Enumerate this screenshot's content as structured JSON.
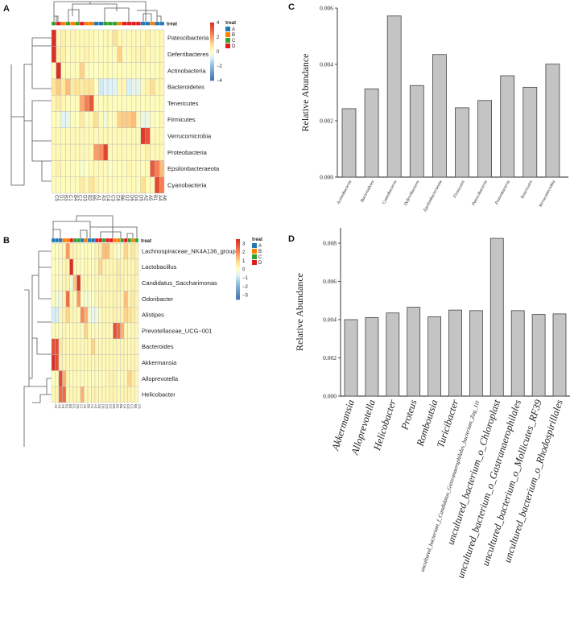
{
  "panels": {
    "a": "A",
    "b": "B",
    "c": "C",
    "d": "D"
  },
  "colors": {
    "treat": {
      "A": "#1F78B4",
      "B": "#FF7F00",
      "C": "#33A02C",
      "D": "#E31A1C"
    },
    "heat_low": "#4575B4",
    "heat_mid": "#FFFFBF",
    "heat_high": "#D73027",
    "bar_fill": "#C4C4C4",
    "bar_stroke": "#444444"
  },
  "chart_data": [
    {
      "type": "heatmap",
      "panel": "A",
      "treat_title": "treat",
      "legend_title": "treat",
      "legend_levels": [
        "A",
        "B",
        "C",
        "D"
      ],
      "scale_ticks": [
        "4",
        "2",
        "0",
        "−2",
        "−4"
      ],
      "scale_range": [
        -4,
        4
      ],
      "columns": [
        "C5",
        "D1",
        "B3",
        "C1",
        "B4",
        "C2",
        "D3",
        "B2",
        "B5",
        "A1",
        "A3",
        "C4",
        "C3",
        "C6",
        "B6",
        "D2",
        "D6",
        "D4",
        "D5",
        "A2",
        "A5",
        "B1",
        "A4",
        "A6"
      ],
      "column_treat": [
        "C",
        "D",
        "B",
        "C",
        "B",
        "C",
        "D",
        "B",
        "B",
        "A",
        "A",
        "C",
        "C",
        "C",
        "B",
        "D",
        "D",
        "D",
        "D",
        "A",
        "A",
        "B",
        "A",
        "A"
      ],
      "rows": [
        "Patescibacteria",
        "Deferribacteres",
        "Actinobacteria",
        "Bacteroidetes",
        "Tenericutes",
        "Firmicutes",
        "Verrucomicrobia",
        "Proteobacteria",
        "Epsilonbacteraeota",
        "Cyanobacteria"
      ],
      "values": [
        [
          4,
          0.2,
          0.5,
          0.2,
          0.3,
          0.2,
          0.2,
          0.3,
          0.2,
          0.1,
          0.1,
          0.2,
          0.2,
          0.9,
          0.2,
          0.2,
          0.2,
          0.2,
          0.2,
          0.2,
          0.5,
          0.2,
          0.1,
          0.3
        ],
        [
          4,
          0.5,
          0.5,
          0.1,
          0.2,
          0.1,
          0.2,
          0.4,
          0.2,
          0.1,
          0.1,
          0.1,
          0.1,
          0.1,
          1.2,
          0.1,
          0.1,
          0.3,
          0.3,
          0.5,
          0.1,
          0.2,
          0.1,
          0.3
        ],
        [
          0.1,
          4,
          0.1,
          0.1,
          0.1,
          0.1,
          1.2,
          0.1,
          0,
          0,
          0.1,
          0.1,
          0.1,
          0.1,
          0.1,
          0.1,
          0.1,
          0.1,
          0.1,
          0.1,
          0.1,
          0.1,
          0.1,
          0.3
        ],
        [
          0.8,
          1.3,
          0.6,
          1.5,
          0.7,
          0.8,
          0.6,
          0.8,
          0.8,
          0,
          -1,
          -0.8,
          -0.8,
          -0.8,
          0.3,
          0.3,
          -0.9,
          -0.6,
          -0.6,
          0.2,
          0.4,
          1.0,
          0.2,
          0.3
        ],
        [
          0.3,
          0.6,
          0.3,
          0.1,
          0.1,
          0.1,
          1.8,
          2.5,
          3.2,
          0.1,
          0.1,
          0.2,
          0.1,
          0.1,
          0.1,
          0.1,
          0.1,
          0.1,
          0.1,
          0.1,
          0.1,
          0.1,
          0.1,
          0.1
        ],
        [
          0,
          0.1,
          -0.8,
          -0.6,
          0.1,
          0,
          0.6,
          0.1,
          0.2,
          1.0,
          0.1,
          -0.3,
          0.1,
          0.1,
          1.2,
          1.3,
          1.3,
          1.5,
          0.2,
          -0.5,
          -0.5,
          0.1,
          0,
          0.3
        ],
        [
          0.2,
          0.2,
          0.2,
          0.2,
          0.2,
          0.2,
          0.2,
          0.2,
          0.2,
          0.2,
          0.2,
          0.2,
          0.2,
          0.2,
          0.2,
          0.2,
          0.2,
          0.2,
          0.2,
          3.8,
          3.3,
          0.2,
          0.2,
          0.2
        ],
        [
          0.2,
          0.2,
          0.2,
          0.2,
          0.2,
          0.2,
          0.2,
          0.2,
          0.2,
          2.0,
          2.2,
          3.6,
          0.2,
          0.2,
          0.2,
          0.2,
          0.2,
          0.2,
          0.2,
          0.2,
          0.5,
          0.2,
          0.2,
          0.2
        ],
        [
          0.1,
          0.4,
          0.1,
          0.1,
          0.1,
          0,
          -0.2,
          0,
          0.1,
          0.2,
          0.2,
          0.1,
          -0.1,
          0.1,
          0.1,
          0.1,
          0.3,
          0.1,
          0.1,
          0.1,
          0.1,
          3.2,
          2.5,
          1.5
        ],
        [
          0.1,
          0.1,
          0.1,
          0.1,
          0.1,
          0.1,
          0.6,
          0.3,
          0.8,
          0.4,
          0.1,
          0.1,
          0.1,
          0.1,
          0.1,
          0.1,
          0.1,
          0.1,
          0.1,
          1.0,
          0.1,
          0.2,
          3.5,
          2.5
        ]
      ]
    },
    {
      "type": "heatmap",
      "panel": "B",
      "treat_title": "treat",
      "legend_title": "treat",
      "legend_levels": [
        "A",
        "B",
        "C",
        "D"
      ],
      "scale_ticks": [
        "3",
        "2",
        "1",
        "0",
        "−1",
        "−2",
        "−3"
      ],
      "scale_range": [
        -3.5,
        3.5
      ],
      "columns": [
        "A2",
        "A5",
        "A4",
        "B1",
        "B3",
        "D1",
        "C5",
        "C1",
        "A6",
        "B5",
        "A1",
        "A3",
        "D4",
        "D6",
        "C3",
        "D2",
        "D5",
        "B2",
        "B6",
        "C4",
        "D3",
        "C2",
        "B4",
        "C6"
      ],
      "column_treat": [
        "A",
        "A",
        "A",
        "B",
        "B",
        "D",
        "C",
        "C",
        "A",
        "B",
        "A",
        "A",
        "D",
        "D",
        "C",
        "D",
        "D",
        "B",
        "B",
        "C",
        "D",
        "C",
        "B",
        "C"
      ],
      "rows": [
        "Lachnospiraceae_NK4A136_group",
        "Lactobacillus",
        "Candidatus_Saccharimonas",
        "Odoribacter",
        "Alistipes",
        "Prevotellaceae_UCG−001",
        "Bacteroides",
        "Akkermansia",
        "Alloprevotella",
        "Helicobacter"
      ],
      "values": [
        [
          0,
          0,
          0.1,
          0.2,
          1.8,
          0.3,
          0.2,
          0.1,
          0,
          0.1,
          0,
          0,
          0.3,
          0.5,
          1.3,
          1.3,
          0.3,
          0.1,
          -0.2,
          0.1,
          1.0,
          0.3,
          0.6,
          0.3
        ],
        [
          0,
          0,
          0.1,
          0.2,
          0.3,
          3.5,
          0.2,
          0.1,
          0,
          0.2,
          0.1,
          0.1,
          0.2,
          1.0,
          0.3,
          0.2,
          0.2,
          0.2,
          0.6,
          0.2,
          0.3,
          0.2,
          0.2,
          0.5
        ],
        [
          0.1,
          0.1,
          0.1,
          0.2,
          0.3,
          -0.3,
          1.2,
          3.4,
          0.2,
          0.2,
          0.1,
          0.1,
          0.2,
          0.2,
          0.2,
          0.3,
          0.2,
          0.2,
          0.5,
          0.3,
          0.2,
          0.2,
          0.3,
          0.3
        ],
        [
          0.1,
          -0.3,
          -0.3,
          0.3,
          2.5,
          0.2,
          0.1,
          1.8,
          0,
          -0.2,
          -0.2,
          0,
          0.2,
          0.3,
          0.2,
          0.2,
          0.2,
          0.3,
          0.3,
          0.2,
          1.3,
          0.3,
          0.5,
          0.3
        ],
        [
          -0.8,
          -0.8,
          0.2,
          0.3,
          1.0,
          0.2,
          0.2,
          0.1,
          2.0,
          1.5,
          -0.3,
          -0.5,
          -0.3,
          0.1,
          0.2,
          0.2,
          0.2,
          0.3,
          0.3,
          0.3,
          1.0,
          0.8,
          0.5,
          0.3
        ],
        [
          0.1,
          0.1,
          0.1,
          0.2,
          0.1,
          0.1,
          0.2,
          0.1,
          0.1,
          1.0,
          0.1,
          0.1,
          0.1,
          0.1,
          0.2,
          0.1,
          0.1,
          3.0,
          2.5,
          1.5,
          0.2,
          0.1,
          0.2,
          0.2
        ],
        [
          3.0,
          3.0,
          0.6,
          0.2,
          0.2,
          0.2,
          0.2,
          0.2,
          0.2,
          0.2,
          0.2,
          1.0,
          0.2,
          0.2,
          0.2,
          0.2,
          0.2,
          0.2,
          0.2,
          0.2,
          0.2,
          0.2,
          0.2,
          0.2
        ],
        [
          3.5,
          3.0,
          0.3,
          0.2,
          0.2,
          0.2,
          0.2,
          0.2,
          0.2,
          0.2,
          0.2,
          0.2,
          0.2,
          0.2,
          0.2,
          0.2,
          0.2,
          0.2,
          0.2,
          0.2,
          0.2,
          0.2,
          0.2,
          0.2
        ],
        [
          0,
          0.1,
          3.0,
          1.5,
          0.2,
          0.1,
          0.1,
          0.1,
          0.1,
          0.1,
          0.1,
          0.1,
          0.1,
          0.1,
          0.1,
          0.2,
          0.3,
          0.3,
          0.1,
          0.1,
          0.2,
          1.0,
          0.5,
          0.2
        ],
        [
          0.2,
          0.2,
          2.5,
          2.5,
          0.2,
          0.2,
          0.2,
          0.2,
          1.5,
          0.2,
          0.2,
          0.3,
          0.3,
          0.2,
          0.2,
          0.2,
          0.3,
          0.2,
          0.2,
          0.2,
          0.3,
          0.3,
          0.2,
          0.2
        ]
      ]
    },
    {
      "type": "bar",
      "panel": "C",
      "title": "",
      "xlabel": "",
      "ylabel": "Relative Abundance",
      "ylim": [
        0,
        0.006
      ],
      "yticks": [
        "0.000",
        "0.002",
        "0.004",
        "0.006"
      ],
      "categories": [
        "Actinobacteria",
        "Bacteroidetes",
        "Cyanobacteria",
        "Deferribacteres",
        "Epsilonbacteraeota",
        "Firmicutes",
        "Patescibacteria",
        "Proteobacteria",
        "Tenericutes",
        "Verrucomicrobia"
      ],
      "values": [
        0.00243,
        0.00313,
        0.00572,
        0.00325,
        0.00435,
        0.00246,
        0.00272,
        0.0036,
        0.00319,
        0.00401
      ]
    },
    {
      "type": "bar",
      "panel": "D",
      "title": "",
      "xlabel": "",
      "ylabel": "Relative Abundance",
      "ylim": [
        0,
        0.0088
      ],
      "yticks": [
        "0.000",
        "0.002",
        "0.004",
        "0.006",
        "0.008"
      ],
      "categories": [
        "Akkermansia",
        "Alloprevotella",
        "Helicobacter",
        "Proteus",
        "Romboutsia",
        "Turicibacter",
        "uncultured_bacterium_f_Candidatus_Gastranaerophilales_bacterium_Zag_111",
        "uncultured_bacterium_o_Chloroplast",
        "uncultured_bacterium_o_Gastranaerophilales",
        "uncultured_bacterium_o_Mollicutes_RF39",
        "uncultured_bacterium_o_Rhodospirillales"
      ],
      "values": [
        0.004,
        0.00411,
        0.00435,
        0.00465,
        0.00415,
        0.0045,
        0.00447,
        0.00825,
        0.00447,
        0.00427,
        0.0043
      ]
    }
  ]
}
